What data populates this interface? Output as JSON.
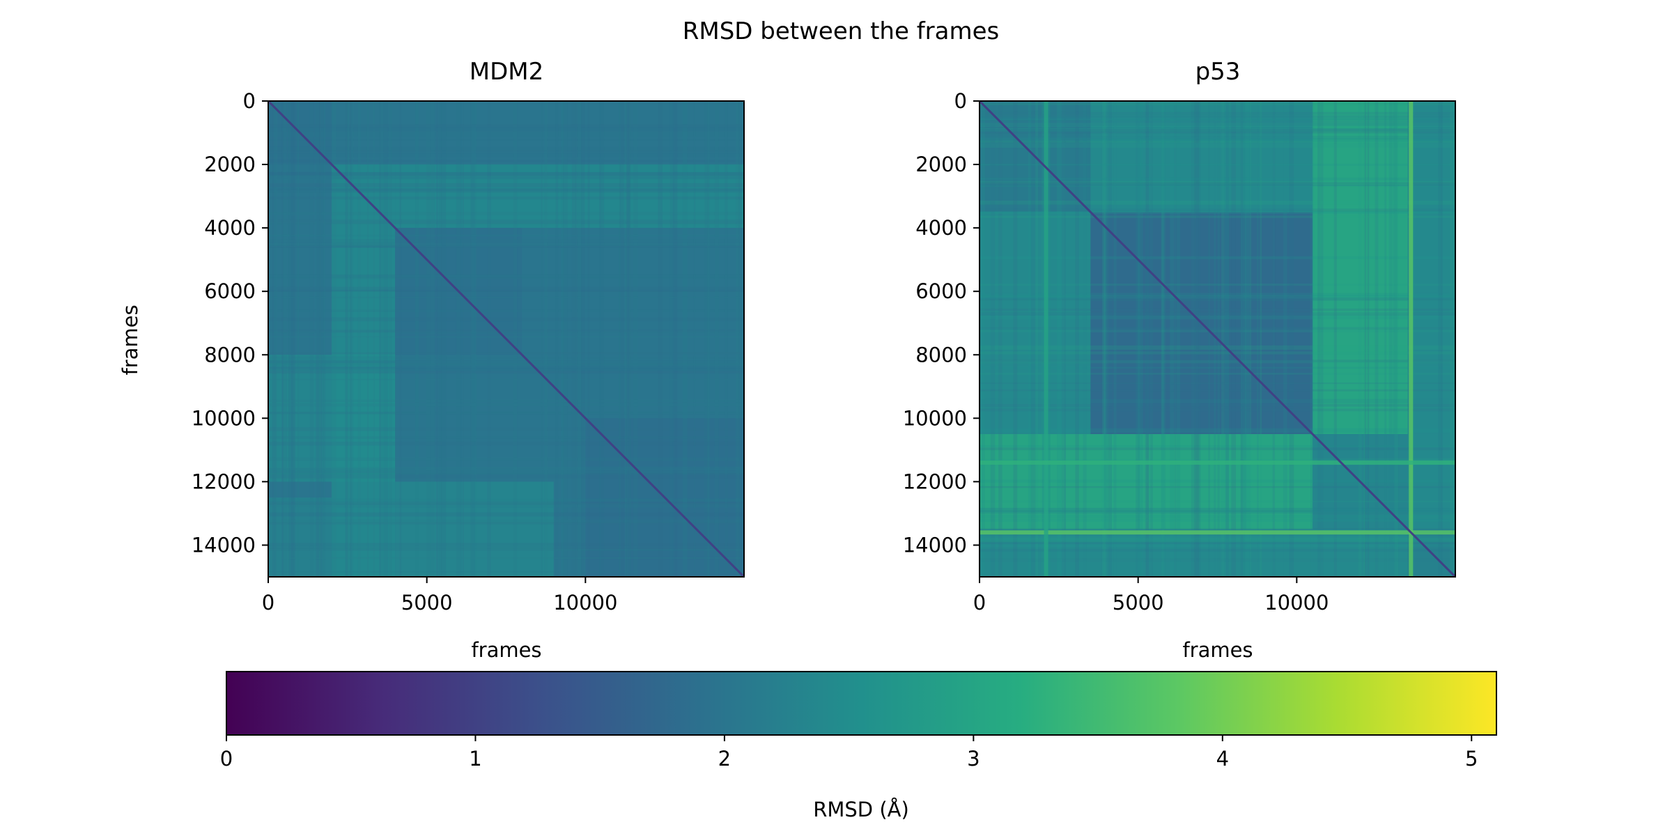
{
  "chart_data": {
    "type": "heatmap",
    "title": "RMSD between the frames",
    "panels": [
      {
        "title": "MDM2",
        "xlabel": "frames",
        "ylabel": "frames",
        "xlim": [
          0,
          15000
        ],
        "ylim": [
          15000,
          0
        ],
        "xticks": [
          0,
          5000,
          10000
        ],
        "yticks": [
          0,
          2000,
          4000,
          6000,
          8000,
          10000,
          12000,
          14000
        ],
        "value_summary": {
          "diagonal": 1.0,
          "typical": 2.0,
          "max_region": 2.6
        },
        "blocks": [
          {
            "x": [
              0,
              2000
            ],
            "y": [
              0,
              2000
            ],
            "value": 1.9
          },
          {
            "x": [
              0,
              4000
            ],
            "y": [
              8000,
              12000
            ],
            "value": 2.45
          },
          {
            "x": [
              2000,
              4000
            ],
            "y": [
              2000,
              15000
            ],
            "value": 2.5
          },
          {
            "x": [
              4000,
              15000
            ],
            "y": [
              2000,
              4000
            ],
            "value": 2.5
          },
          {
            "x": [
              10000,
              15000
            ],
            "y": [
              10000,
              15000
            ],
            "value": 1.85
          },
          {
            "x": [
              4000,
              8000
            ],
            "y": [
              4000,
              8000
            ],
            "value": 1.9
          },
          {
            "x": [
              4000,
              9000
            ],
            "y": [
              12000,
              15000
            ],
            "value": 2.4
          },
          {
            "x": [
              0,
              2000
            ],
            "y": [
              12500,
              15000
            ],
            "value": 2.3
          }
        ]
      },
      {
        "title": "p53",
        "xlabel": "frames",
        "ylabel": "",
        "xlim": [
          0,
          15000
        ],
        "ylim": [
          15000,
          0
        ],
        "xticks": [
          0,
          5000,
          10000
        ],
        "yticks": [
          0,
          2000,
          4000,
          6000,
          8000,
          10000,
          12000,
          14000
        ],
        "value_summary": {
          "diagonal": 1.0,
          "typical": 2.4,
          "max_region": 4.0
        },
        "blocks": [
          {
            "x": [
              3500,
              10500
            ],
            "y": [
              3500,
              10500
            ],
            "value": 1.6
          },
          {
            "x": [
              0,
              3500
            ],
            "y": [
              0,
              3500
            ],
            "value": 2.0
          },
          {
            "x": [
              0,
              10500
            ],
            "y": [
              10500,
              13500
            ],
            "value": 3.2
          },
          {
            "x": [
              10500,
              13500
            ],
            "y": [
              0,
              10500
            ],
            "value": 3.2
          },
          {
            "x": [
              10500,
              13500
            ],
            "y": [
              10500,
              13500
            ],
            "value": 2.3
          },
          {
            "x": [
              13500,
              15000
            ],
            "y": [
              13500,
              15000
            ],
            "value": 2.2
          }
        ],
        "stripes": [
          {
            "axis": "x",
            "at": 13600,
            "value": 3.8
          },
          {
            "axis": "y",
            "at": 13600,
            "value": 3.8
          },
          {
            "axis": "x",
            "at": 2100,
            "value": 3.0
          },
          {
            "axis": "y",
            "at": 11400,
            "value": 3.3
          }
        ]
      }
    ],
    "colorbar": {
      "label": "RMSD (Å)",
      "range": [
        0,
        5.1
      ],
      "ticks": [
        0,
        1,
        2,
        3,
        4,
        5
      ],
      "colormap": "viridis",
      "orientation": "horizontal"
    }
  }
}
